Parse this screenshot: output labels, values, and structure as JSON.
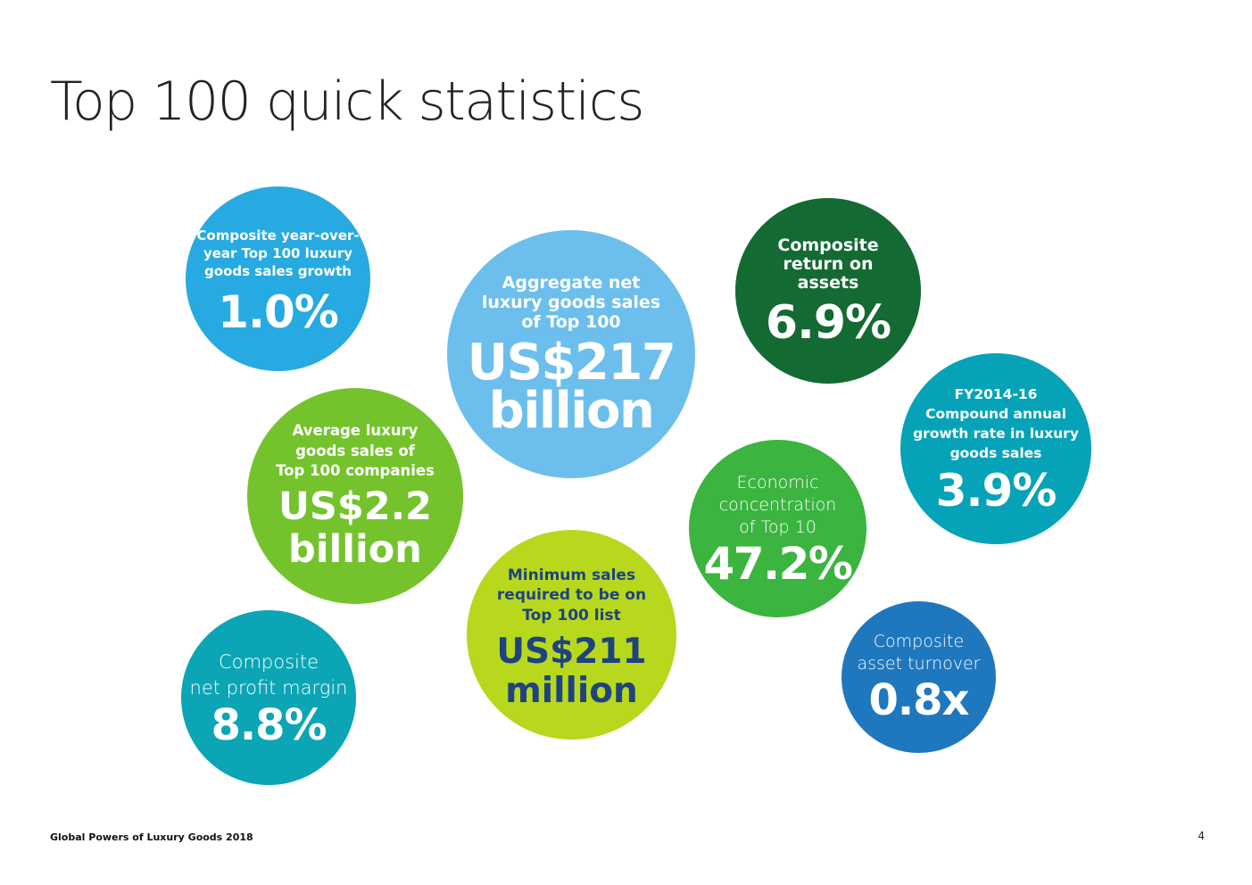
{
  "title": "Top 100 quick statistics",
  "stats": {
    "growth": {
      "label": "Composite year-over-\nyear Top 100 luxury\ngoods sales growth",
      "value": "1.0%"
    },
    "aggregate": {
      "label": "Aggregate net\nluxury goods sales\nof Top 100",
      "value": "US$217\nbillion"
    },
    "roa": {
      "label": "Composite\nreturn on\nassets",
      "value": "6.9%"
    },
    "cagr": {
      "label": "FY2014-16\nCompound annual\ngrowth rate in luxury\ngoods sales",
      "value": "3.9%"
    },
    "average": {
      "label": "Average luxury\ngoods sales of\nTop 100 companies",
      "value": "US$2.2\nbillion"
    },
    "concentration": {
      "label": "Economic\nconcentration\nof Top 10",
      "value": "47.2%"
    },
    "minimum": {
      "label": "Minimum sales\nrequired to be on\nTop 100 list",
      "value": "US$211\nmillion"
    },
    "profit_margin": {
      "label": "Composite\nnet profit margin",
      "value": "8.8%"
    },
    "asset_turnover": {
      "label": "Composite\nasset turnover",
      "value": "0.8x"
    }
  },
  "colors": {
    "growth": "#27aae1",
    "aggregate": "#6cbfec",
    "roa": "#136a32",
    "cagr": "#06a3b8",
    "average": "#74c32d",
    "concentration": "#3bb440",
    "minimum": "#b7d81c",
    "minimum_text": "#1f4280",
    "profit_margin": "#0ba5b6",
    "asset_turnover": "#1f77be"
  },
  "footer": {
    "publication": "Global Powers of Luxury Goods 2018",
    "page_number": "4"
  }
}
